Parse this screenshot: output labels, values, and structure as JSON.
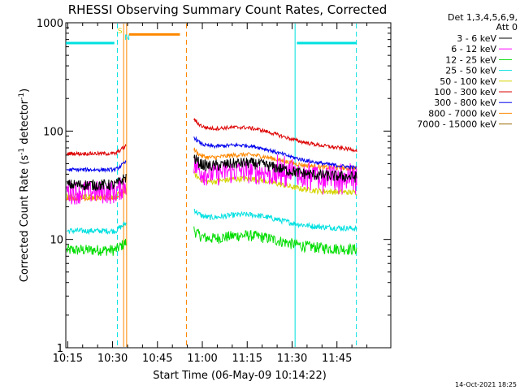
{
  "chart_data": {
    "type": "line",
    "title": "RHESSI Observing Summary Count Rates, Corrected",
    "xlabel": "Start Time (06-May-09 10:14:22)",
    "ylabel_main": "Corrected Count Rate (s",
    "ylabel_sup1": "-1",
    "ylabel_mid": " detector",
    "ylabel_sup2": "-1",
    "ylabel_end": ")",
    "yscale": "log",
    "ylim": [
      1,
      1000
    ],
    "y_ticks": [
      {
        "value": 1,
        "label": "1"
      },
      {
        "value": 10,
        "label": "10"
      },
      {
        "value": 100,
        "label": "100"
      },
      {
        "value": 1000,
        "label": "1000"
      }
    ],
    "x_ticks": [
      "10:15",
      "10:30",
      "10:45",
      "11:00",
      "11:15",
      "11:30",
      "11:45"
    ],
    "x_tick_minutes": [
      15,
      30,
      45,
      60,
      75,
      90,
      105
    ],
    "xlim_minutes": [
      14.37,
      123.0
    ],
    "legend_header": [
      "Det 1,3,4,5,6,9,",
      "Att 0"
    ],
    "series": [
      {
        "name": "3 - 6 keV",
        "color": "#000000",
        "level_a": 32,
        "level_b": 42,
        "noise": 0.12
      },
      {
        "name": "6 - 12 keV",
        "color": "#ff00ff",
        "level_a": 28,
        "level_b": 36,
        "noise": 0.25
      },
      {
        "name": "12 - 25 keV",
        "color": "#00dd00",
        "level_a": 8,
        "level_b": 9,
        "noise": 0.12
      },
      {
        "name": "25 - 50 keV",
        "color": "#00e0e0",
        "level_a": 12,
        "level_b": 14,
        "noise": 0.06
      },
      {
        "name": "50 - 100 keV",
        "color": "#d4d400",
        "level_a": 25,
        "level_b": 30,
        "noise": 0.06
      },
      {
        "name": "100 - 300 keV",
        "color": "#dd0000",
        "level_a": 62,
        "level_b": 95,
        "noise": 0.04
      },
      {
        "name": "300 - 800 keV",
        "color": "#0000ee",
        "level_a": 44,
        "level_b": 65,
        "noise": 0.04
      },
      {
        "name": "800 - 7000 keV",
        "color": "#ff8800",
        "level_a": 24,
        "level_b": 50,
        "noise": 0.05
      },
      {
        "name": "7000 - 15000 keV",
        "color": "#996600",
        "level_a": 0,
        "level_b": 0,
        "noise": 0
      }
    ],
    "night_bars": [
      {
        "from_minute": 14.4,
        "to_minute": 30.6,
        "value": 650
      },
      {
        "from_minute": 91.6,
        "to_minute": 111.5,
        "value": 650
      }
    ],
    "saa_bar": {
      "from_minute": 35.5,
      "to_minute": 52.5,
      "value": 780
    },
    "markers": [
      {
        "minute": 31.6,
        "color": "#00e0e0",
        "style": "dashed"
      },
      {
        "minute": 33.7,
        "color": "#ff8800",
        "style": "solid"
      },
      {
        "minute": 34.7,
        "color": "#ff8800",
        "style": "solid"
      },
      {
        "minute": 54.7,
        "color": "#ff8800",
        "style": "dashed"
      },
      {
        "minute": 91.0,
        "color": "#00e0e0",
        "style": "solid"
      },
      {
        "minute": 111.5,
        "color": "#00e0e0",
        "style": "dashed"
      }
    ],
    "flags": [
      {
        "label": "S",
        "minute": 32.5,
        "color": "#d4d400"
      },
      {
        "label": "N",
        "minute": 34.9,
        "color": "#00e0e0"
      }
    ],
    "data_gap_minutes": [
      34.7,
      57.2
    ],
    "footer_timestamp": "14-Oct-2021 18:25"
  }
}
